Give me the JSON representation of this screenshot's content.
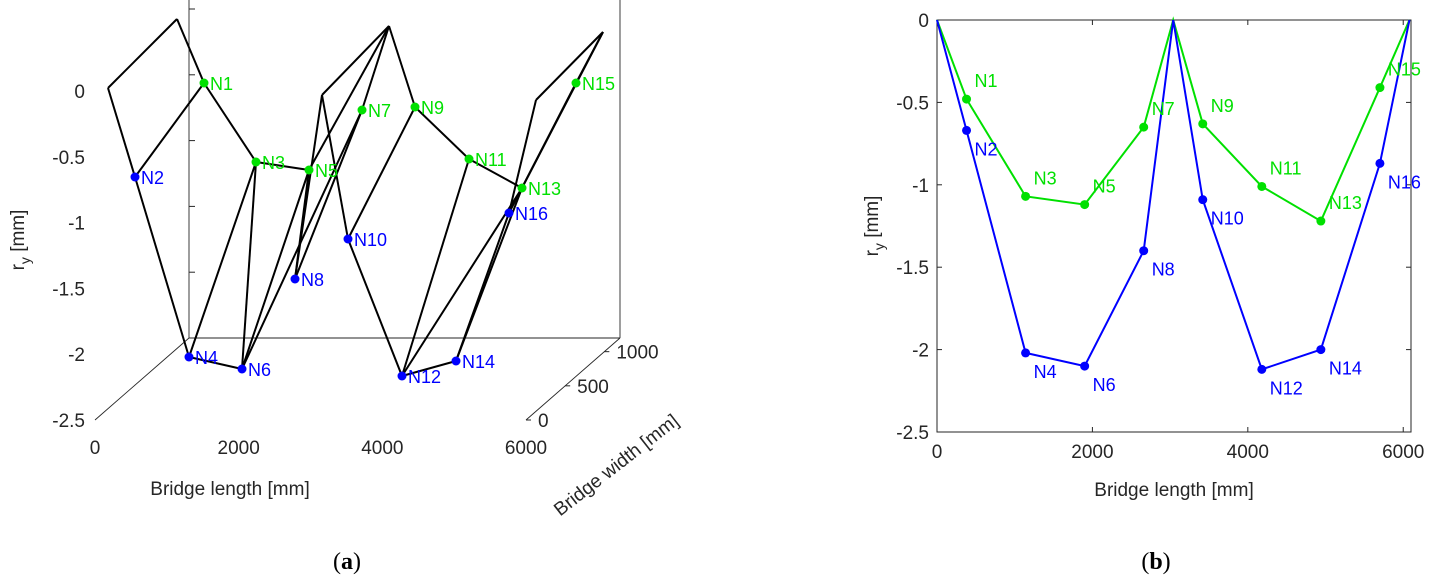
{
  "colors": {
    "blue": "#0000ff",
    "green": "#00e000",
    "black": "#000000",
    "axis": "#262626"
  },
  "chart_data": [
    {
      "type": "line",
      "panel": "a",
      "panel_label": "a",
      "projection": "3d",
      "xlabel": "Bridge length [mm]",
      "ylabel": "r",
      "ylabel_sub": "y",
      "ylabel_unit": " [mm]",
      "zlabel": "Bridge width [mm]",
      "xlim": [
        0,
        6000
      ],
      "ylim": [
        -2.5,
        0.5
      ],
      "zlim": [
        0,
        1200
      ],
      "xticks": [
        "0",
        "2000",
        "4000",
        "6000"
      ],
      "yticks": [
        "0",
        "-0.5",
        "-1",
        "-1.5",
        "-2",
        "-2.5"
      ],
      "zticks": [
        "0",
        "500",
        "1000"
      ],
      "nodes": [
        {
          "name": "N1",
          "color": "green"
        },
        {
          "name": "N2",
          "color": "blue"
        },
        {
          "name": "N3",
          "color": "green"
        },
        {
          "name": "N4",
          "color": "blue"
        },
        {
          "name": "N5",
          "color": "green"
        },
        {
          "name": "N6",
          "color": "blue"
        },
        {
          "name": "N7",
          "color": "green"
        },
        {
          "name": "N8",
          "color": "blue"
        },
        {
          "name": "N9",
          "color": "green"
        },
        {
          "name": "N10",
          "color": "blue"
        },
        {
          "name": "N11",
          "color": "green"
        },
        {
          "name": "N12",
          "color": "blue"
        },
        {
          "name": "N13",
          "color": "green"
        },
        {
          "name": "N14",
          "color": "blue"
        },
        {
          "name": "N15",
          "color": "green"
        },
        {
          "name": "N16",
          "color": "blue"
        }
      ]
    },
    {
      "type": "line",
      "panel": "b",
      "panel_label": "b",
      "xlabel": "Bridge length [mm]",
      "ylabel": "r",
      "ylabel_sub": "y",
      "ylabel_unit": " [mm]",
      "xlim": [
        0,
        6100
      ],
      "ylim": [
        -2.5,
        0
      ],
      "xticks": [
        0,
        2000,
        4000,
        6000
      ],
      "yticks": [
        0,
        -0.5,
        -1,
        -1.5,
        -2,
        -2.5
      ],
      "xtick_labels": [
        "0",
        "2000",
        "4000",
        "6000"
      ],
      "ytick_labels": [
        "0",
        "-0.5",
        "-1",
        "-1.5",
        "-2",
        "-2.5"
      ],
      "series": [
        {
          "name": "green",
          "color": "green",
          "x": [
            0,
            380,
            1140,
            1900,
            2660,
            3040,
            3420,
            4180,
            4940,
            5700,
            6080
          ],
          "y": [
            0,
            -0.48,
            -1.07,
            -1.12,
            -0.65,
            0,
            -0.63,
            -1.01,
            -1.22,
            -0.41,
            0
          ],
          "labels": [
            "",
            "N1",
            "N3",
            "N5",
            "N7",
            "",
            "N9",
            "N11",
            "N13",
            "N15",
            ""
          ]
        },
        {
          "name": "blue",
          "color": "blue",
          "x": [
            0,
            380,
            1140,
            1900,
            2660,
            3040,
            3420,
            4180,
            4940,
            5700,
            6080
          ],
          "y": [
            0,
            -0.67,
            -2.02,
            -2.1,
            -1.4,
            0,
            -1.09,
            -2.12,
            -2.0,
            -0.87,
            0
          ],
          "labels": [
            "",
            "N2",
            "N4",
            "N6",
            "N8",
            "",
            "N10",
            "N12",
            "N14",
            "N16",
            ""
          ]
        }
      ]
    }
  ]
}
